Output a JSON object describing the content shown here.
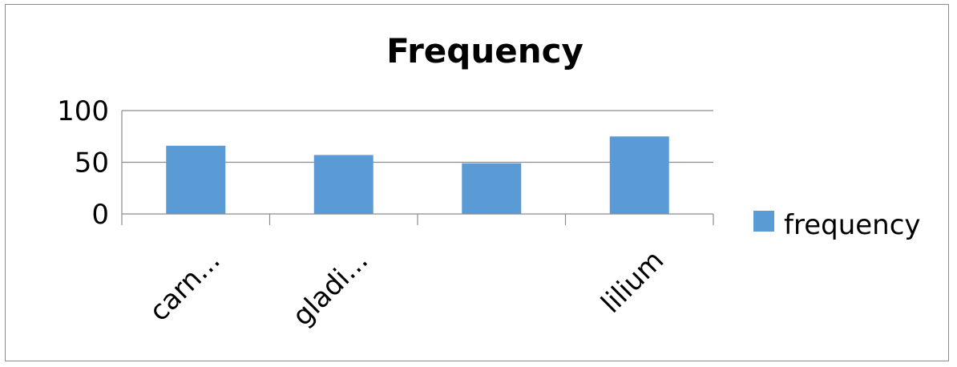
{
  "chart_data": {
    "type": "bar",
    "title": "Frequency",
    "categories": [
      "carn...",
      "gladi...",
      "",
      "lilium"
    ],
    "series": [
      {
        "name": "frequency",
        "values": [
          66,
          57,
          49,
          75
        ],
        "color": "#5b9bd5"
      }
    ],
    "ylim": [
      0,
      100
    ],
    "yticks": [
      0,
      50,
      100
    ],
    "ytick_labels": [
      "0",
      "50",
      "100"
    ],
    "grid": true,
    "legend": "right"
  }
}
